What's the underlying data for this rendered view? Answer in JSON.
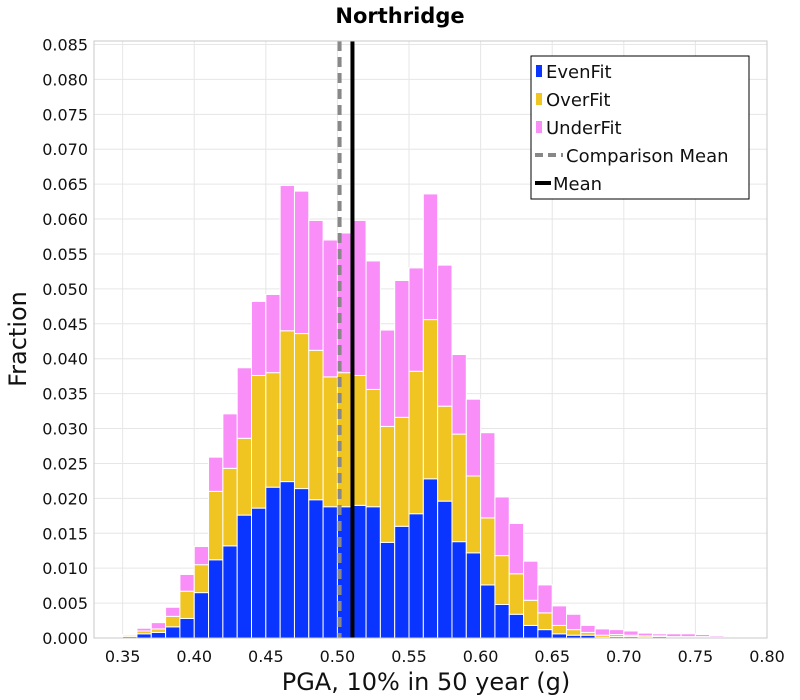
{
  "chart_data": {
    "type": "bar",
    "stacked": true,
    "title": "Northridge",
    "xlabel": "PGA, 10% in 50 year (g)",
    "ylabel": "Fraction",
    "xlim": [
      0.33,
      0.8
    ],
    "ylim": [
      0,
      0.0855
    ],
    "xticks": [
      "0.35",
      "0.40",
      "0.45",
      "0.50",
      "0.55",
      "0.60",
      "0.65",
      "0.70",
      "0.75",
      "0.80"
    ],
    "yticks": [
      "0.000",
      "0.005",
      "0.010",
      "0.015",
      "0.020",
      "0.025",
      "0.030",
      "0.035",
      "0.040",
      "0.045",
      "0.050",
      "0.055",
      "0.060",
      "0.065",
      "0.070",
      "0.075",
      "0.080",
      "0.085"
    ],
    "grid": true,
    "legend_position": "top-right",
    "bin_width": 0.01,
    "x": [
      0.345,
      0.355,
      0.365,
      0.375,
      0.385,
      0.395,
      0.405,
      0.415,
      0.425,
      0.435,
      0.445,
      0.455,
      0.465,
      0.475,
      0.485,
      0.495,
      0.505,
      0.515,
      0.525,
      0.535,
      0.545,
      0.555,
      0.565,
      0.575,
      0.585,
      0.595,
      0.605,
      0.615,
      0.625,
      0.635,
      0.645,
      0.655,
      0.665,
      0.675,
      0.685,
      0.695,
      0.705,
      0.715,
      0.725,
      0.735,
      0.745,
      0.755,
      0.765,
      0.775,
      0.785
    ],
    "series": [
      {
        "name": "EvenFit",
        "color": "#0a34ff",
        "values": [
          0.0,
          0.0002,
          0.0006,
          0.0008,
          0.0016,
          0.0028,
          0.0065,
          0.0112,
          0.0132,
          0.0176,
          0.0186,
          0.0216,
          0.0224,
          0.0214,
          0.0198,
          0.0188,
          0.0188,
          0.019,
          0.0188,
          0.0137,
          0.016,
          0.0178,
          0.0228,
          0.0196,
          0.0138,
          0.0122,
          0.0076,
          0.0048,
          0.0034,
          0.0018,
          0.0012,
          0.0006,
          0.0004,
          0.0004,
          0.0001,
          0.0002,
          0.0002,
          0.0001,
          0.0002,
          0.0001,
          0.0001,
          0.0001,
          0.0,
          0.0001,
          0.0
        ]
      },
      {
        "name": "OverFit",
        "color": "#f0c421",
        "values": [
          0.0,
          0.0002,
          0.0004,
          0.0005,
          0.0015,
          0.0039,
          0.004,
          0.0098,
          0.0111,
          0.011,
          0.019,
          0.0164,
          0.0216,
          0.0222,
          0.0214,
          0.0186,
          0.0192,
          0.0186,
          0.0168,
          0.0166,
          0.0156,
          0.0204,
          0.0228,
          0.0136,
          0.0154,
          0.011,
          0.0096,
          0.007,
          0.0058,
          0.0036,
          0.0024,
          0.0012,
          0.0008,
          0.0004,
          0.0003,
          0.0003,
          0.0002,
          0.0002,
          0.0001,
          0.0001,
          0.0001,
          0.0001,
          0.0001,
          0.0,
          0.0
        ]
      },
      {
        "name": "UnderFit",
        "color": "#f98ef8",
        "values": [
          0.0,
          0.0001,
          0.0004,
          0.0009,
          0.0013,
          0.0024,
          0.0026,
          0.0049,
          0.0078,
          0.0101,
          0.0106,
          0.0112,
          0.0208,
          0.0204,
          0.0186,
          0.0196,
          0.02,
          0.0222,
          0.0184,
          0.0138,
          0.0196,
          0.0148,
          0.018,
          0.0202,
          0.0114,
          0.011,
          0.0122,
          0.0084,
          0.0072,
          0.0056,
          0.004,
          0.0028,
          0.0022,
          0.001,
          0.0009,
          0.0007,
          0.0006,
          0.0004,
          0.0003,
          0.0004,
          0.0004,
          0.0003,
          0.0002,
          0.0001,
          0.0001
        ]
      }
    ],
    "comparison_mean": {
      "label": "Comparison Mean",
      "x": 0.5015,
      "color": "#888888"
    },
    "mean": {
      "label": "Mean",
      "x": 0.5105,
      "color": "#000000"
    }
  }
}
